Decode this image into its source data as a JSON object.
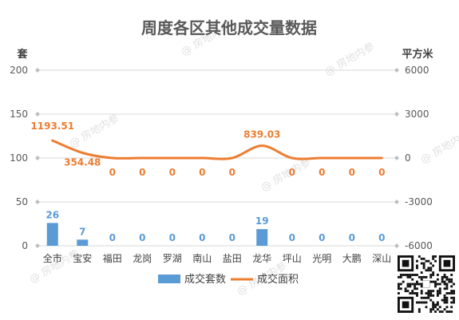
{
  "chart_data": {
    "type": "bar",
    "title": "周度各区其他成交量数据",
    "categories": [
      "全市",
      "宝安",
      "福田",
      "龙岗",
      "罗湖",
      "南山",
      "盐田",
      "龙华",
      "坪山",
      "光明",
      "大鹏",
      "深山"
    ],
    "series": [
      {
        "name": "成交套数",
        "type": "bar",
        "axis": "left",
        "color": "#5b9bd5",
        "values": [
          26,
          7,
          0,
          0,
          0,
          0,
          0,
          19,
          0,
          0,
          0,
          0
        ],
        "labels": [
          "26",
          "7",
          "0",
          "0",
          "0",
          "0",
          "0",
          "19",
          "0",
          "0",
          "0",
          "0"
        ]
      },
      {
        "name": "成交面积",
        "type": "line",
        "axis": "right",
        "color": "#ed7d31",
        "values": [
          1193.51,
          354.48,
          0,
          0,
          0,
          0,
          0,
          839.03,
          0,
          0,
          0,
          0
        ],
        "labels": [
          "1193.51",
          "354.48",
          "0",
          "0",
          "0",
          "0",
          "0",
          "839.03",
          "0",
          "0",
          "0",
          "0"
        ]
      }
    ],
    "y_left": {
      "unit": "套",
      "min": 0,
      "max": 200,
      "ticks": [
        "0",
        "50",
        "100",
        "150",
        "200"
      ]
    },
    "y_right": {
      "unit": "平方米",
      "min": -6000,
      "max": 6000,
      "ticks": [
        "-6000",
        "-3000",
        "0",
        "3000",
        "6000"
      ]
    },
    "grid": true,
    "legend_position": "bottom"
  },
  "watermark": "@ 房地内参"
}
